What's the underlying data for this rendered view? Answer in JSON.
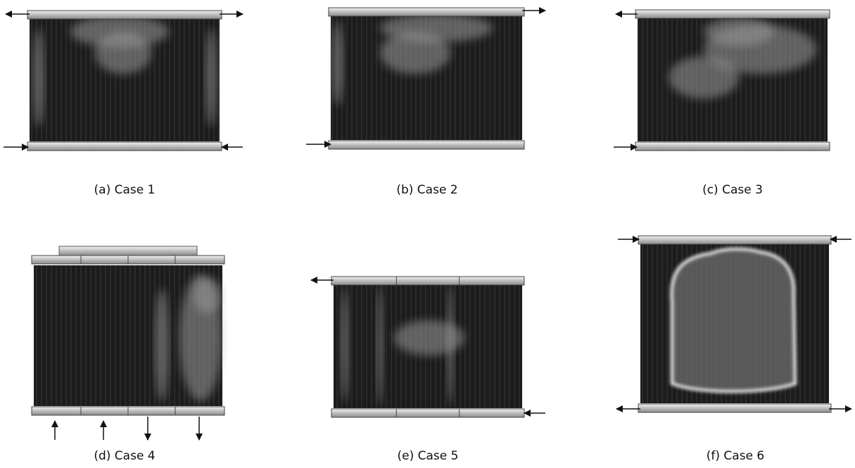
{
  "figure": {
    "panels": [
      {
        "caption": "(a) Case 1"
      },
      {
        "caption": "(b) Case 2"
      },
      {
        "caption": "(c) Case 3"
      },
      {
        "caption": "(d) Case 4"
      },
      {
        "caption": "(e) Case 5"
      },
      {
        "caption": "(f) Case 6"
      }
    ]
  }
}
